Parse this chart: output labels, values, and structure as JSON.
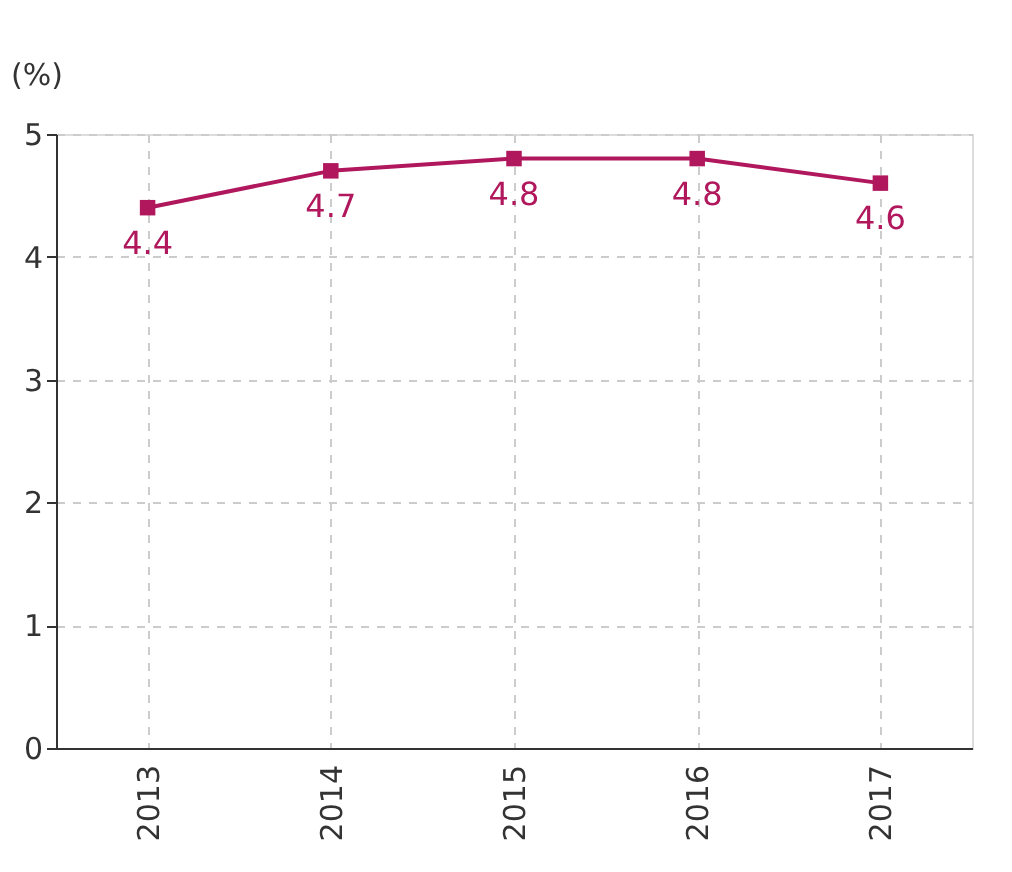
{
  "chart_data": {
    "type": "line",
    "ylabel": "(%)",
    "categories": [
      "2013",
      "2014",
      "2015",
      "2016",
      "2017"
    ],
    "series": [
      {
        "color": "#b0175c",
        "values": [
          4.4,
          4.7,
          4.8,
          4.8,
          4.6
        ]
      }
    ],
    "ylim": [
      0,
      5
    ],
    "yticks": [
      0,
      1,
      2,
      3,
      4,
      5
    ],
    "grid": true,
    "marker": "square",
    "line_style": "solid",
    "data_labels": true
  }
}
